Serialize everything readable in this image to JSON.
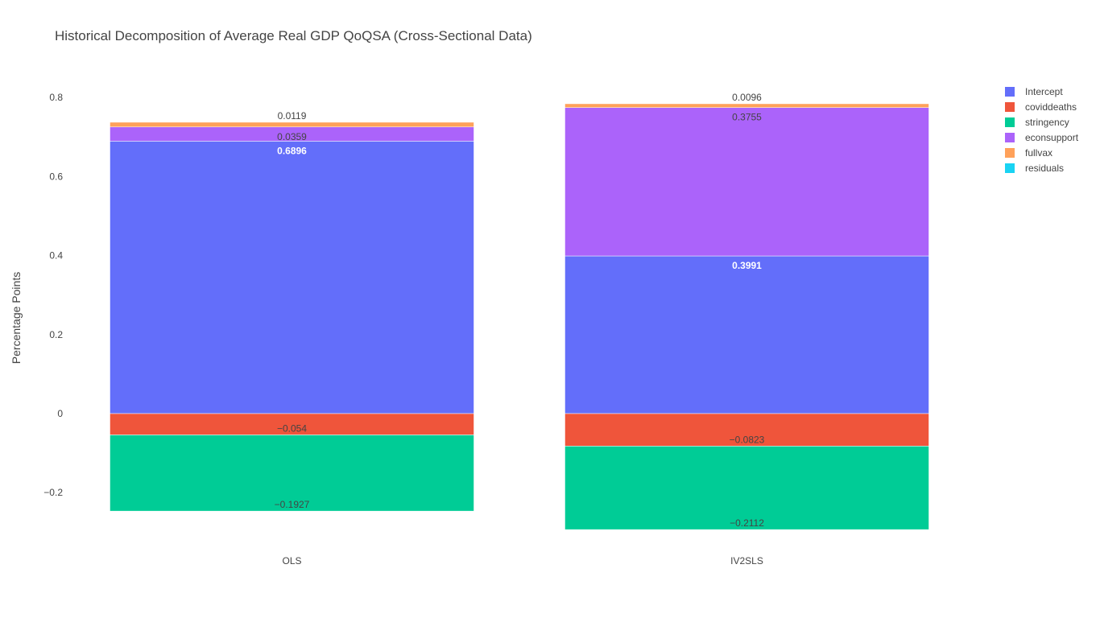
{
  "chart_data": {
    "type": "bar",
    "barmode": "relative",
    "title": "Historical Decomposition of Average Real GDP QoQSA (Cross-Sectional Data)",
    "xlabel": "",
    "ylabel": "Percentage Points",
    "categories": [
      "OLS",
      "IV2SLS"
    ],
    "ylim": [
      -0.3,
      0.85
    ],
    "yticks": [
      -0.2,
      0,
      0.2,
      0.4,
      0.6,
      0.8
    ],
    "ytick_labels": [
      "−0.2",
      "0",
      "0.2",
      "0.4",
      "0.6",
      "0.8"
    ],
    "grid": false,
    "legend_position": "top-right",
    "series": [
      {
        "name": "Intercept",
        "color": "#636efa",
        "values": [
          0.6896,
          0.3991
        ],
        "labels": [
          "0.6896",
          "0.3991"
        ],
        "label_color": "#ffffff"
      },
      {
        "name": "coviddeaths",
        "color": "#ef553b",
        "values": [
          -0.054,
          -0.0823
        ],
        "labels": [
          "−0.054",
          "−0.0823"
        ],
        "label_color": "#444444"
      },
      {
        "name": "stringency",
        "color": "#00cc96",
        "values": [
          -0.1927,
          -0.2112
        ],
        "labels": [
          "−0.1927",
          "−0.2112"
        ],
        "label_color": "#444444"
      },
      {
        "name": "econsupport",
        "color": "#ab63fa",
        "values": [
          0.0359,
          0.3755
        ],
        "labels": [
          "0.0359",
          "0.3755"
        ],
        "label_color": "#444444"
      },
      {
        "name": "fullvax",
        "color": "#ffa15a",
        "values": [
          0.0119,
          0.0096
        ],
        "labels": [
          "0.0119",
          "0.0096"
        ],
        "label_color": "#444444"
      },
      {
        "name": "residuals",
        "color": "#19d3f3",
        "values": [
          0,
          0
        ],
        "labels": [
          "",
          ""
        ],
        "label_color": "#444444"
      }
    ]
  }
}
